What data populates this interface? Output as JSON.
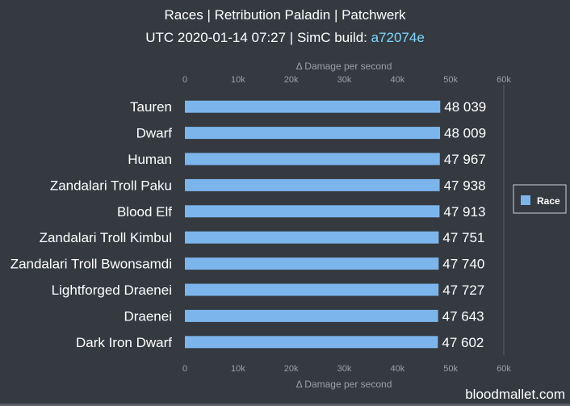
{
  "header": {
    "title": "Races | Retribution Paladin | Patchwerk",
    "subtitle_prefix": "UTC 2020-01-14 07:27 | SimC build: ",
    "build_link": "a72074e"
  },
  "watermark": "bloodmallet.com",
  "colors": {
    "background": "#343a40",
    "bar": "#7cb5ec",
    "link": "#7fd7ff",
    "axis_text": "#9aa0a6",
    "grid": "#5a6068"
  },
  "chart_data": {
    "type": "bar",
    "orientation": "horizontal",
    "xlabel": "Δ Damage per second",
    "xlabel_bottom": "Δ Damage per second",
    "xlim": [
      0,
      60000
    ],
    "ticks": [
      0,
      10000,
      20000,
      30000,
      40000,
      50000,
      60000
    ],
    "tick_labels": [
      "0",
      "10k",
      "20k",
      "30k",
      "40k",
      "50k",
      "60k"
    ],
    "categories": [
      "Tauren",
      "Dwarf",
      "Human",
      "Zandalari Troll Paku",
      "Blood Elf",
      "Zandalari Troll Kimbul",
      "Zandalari Troll Bwonsamdi",
      "Lightforged Draenei",
      "Draenei",
      "Dark Iron Dwarf"
    ],
    "series": [
      {
        "name": "Race",
        "values": [
          48039,
          48009,
          47967,
          47938,
          47913,
          47751,
          47740,
          47727,
          47643,
          47602
        ]
      }
    ],
    "data_labels": [
      "48 039",
      "48 009",
      "47 967",
      "47 938",
      "47 913",
      "47 751",
      "47 740",
      "47 727",
      "47 643",
      "47 602"
    ],
    "legend_placement": "right",
    "grid": false
  }
}
